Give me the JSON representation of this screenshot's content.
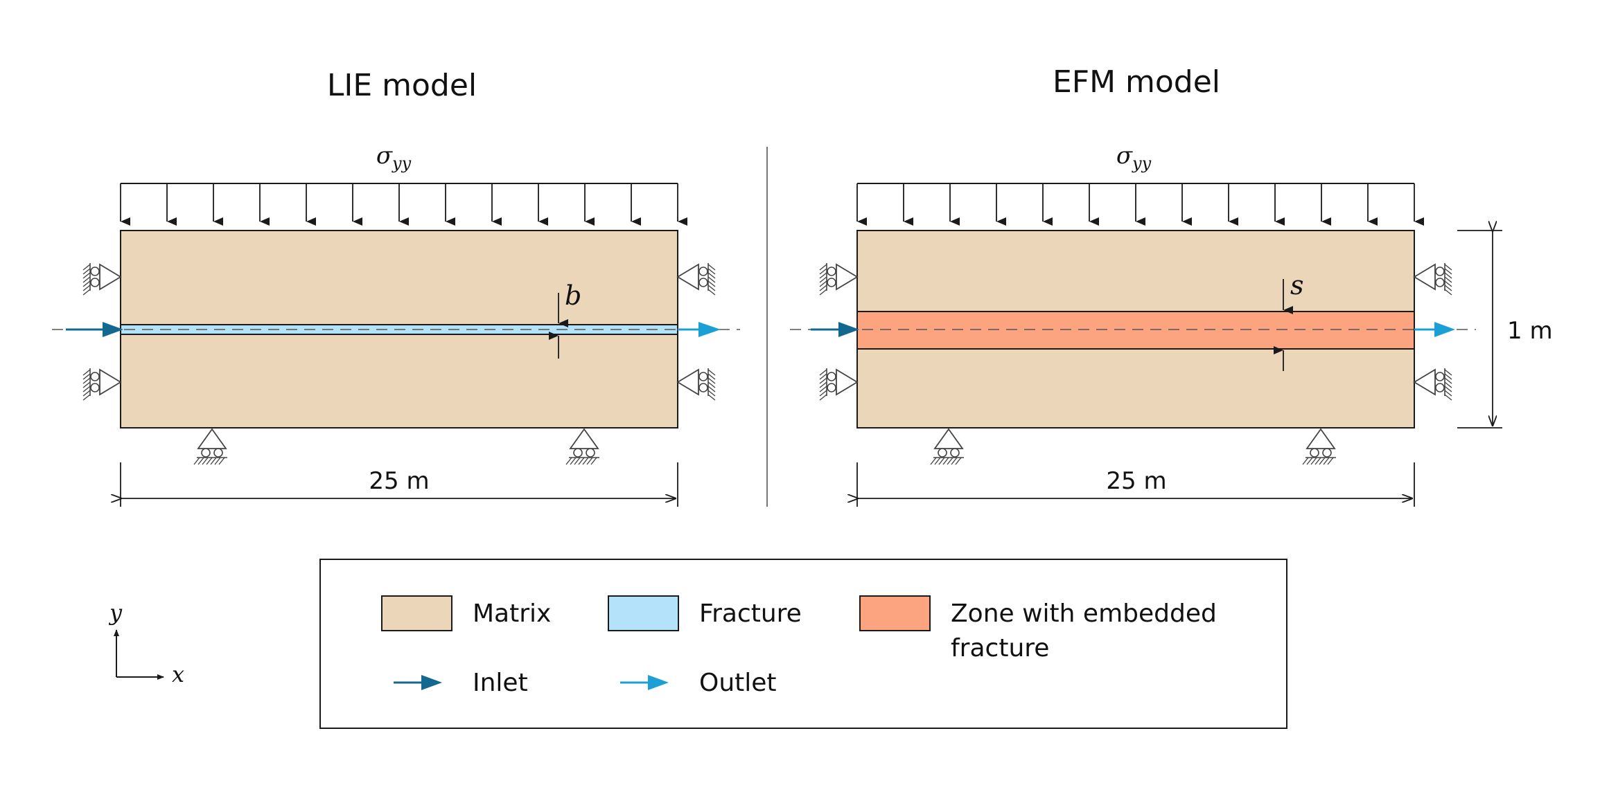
{
  "titles": {
    "left": "LIE model",
    "right": "EFM model"
  },
  "load": {
    "left_symbol": "σ",
    "left_sub": "yy",
    "right_symbol": "σ",
    "right_sub": "yy"
  },
  "dimensions": {
    "left_width": "25 m",
    "right_width": "25 m",
    "height": "1 m"
  },
  "labels": {
    "aperture": "b",
    "zone_thickness": "s"
  },
  "axes": {
    "x": "x",
    "y": "y"
  },
  "legend": {
    "matrix": "Matrix",
    "fracture": "Fracture",
    "zone_line1": "Zone with embedded",
    "zone_line2": "fracture",
    "inlet": "Inlet",
    "outlet": "Outlet"
  },
  "colors": {
    "matrix": "#ecd6b9",
    "fracture": "#b5e2fb",
    "zone": "#fca37f",
    "inlet": "#13688f",
    "outlet": "#1aa0d4",
    "stroke": "#1a1a1a"
  }
}
